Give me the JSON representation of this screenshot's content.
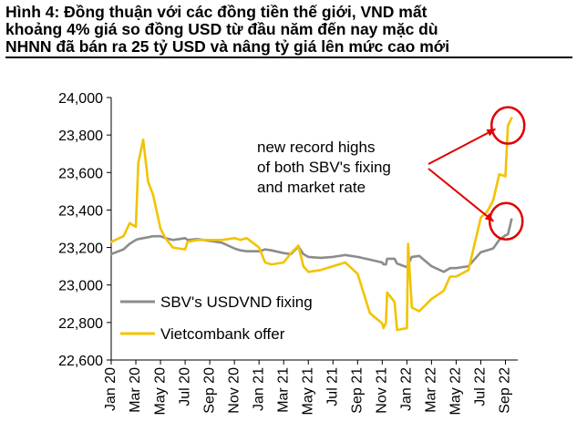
{
  "caption": {
    "lines": [
      "Hình 4: Đồng thuận với các đồng tiền thế giới, VND mất",
      "khoảng 4% giá so đồng USD từ đầu năm đến nay mặc dù",
      "NHNN đã bán ra 25 tỷ USD và nâng tỷ giá lên mức cao mới"
    ]
  },
  "chart_data": {
    "type": "line",
    "title": "Hình 4: Đồng thuận với các đồng tiền thế giới, VND mất khoảng 4% giá so đồng USD từ đầu năm đến nay mặc dù NHNN đã bán ra 25 tỷ USD và nâng tỷ giá lên mức cao mới",
    "xlabel": "",
    "ylabel": "",
    "ylim": [
      22600,
      24000
    ],
    "yticks": [
      "22,600",
      "22,800",
      "23,000",
      "23,200",
      "23,400",
      "23,600",
      "23,800",
      "24,000"
    ],
    "ytick_values": [
      22600,
      22800,
      23000,
      23200,
      23400,
      23600,
      23800,
      24000
    ],
    "xticks": [
      "Jan 20",
      "Mar 20",
      "May 20",
      "Jul 20",
      "Sep 20",
      "Nov 20",
      "Jan 21",
      "Mar 21",
      "May 21",
      "Jul 21",
      "Sep 21",
      "Nov 21",
      "Jan 22",
      "Mar 22",
      "May 22",
      "Jul 22",
      "Sep 22"
    ],
    "grid": false,
    "legend": "bottom-left",
    "x": [
      0.0,
      1.0,
      1.5,
      2.0,
      2.2,
      2.6,
      3.0,
      3.4,
      4.0,
      4.4,
      5.0,
      6.0,
      6.2,
      7.0,
      8.0,
      9.0,
      9.5,
      10.0,
      10.5,
      11.0,
      12.0,
      12.5,
      13.0,
      14.0,
      14.6,
      15.2,
      15.6,
      16.0,
      17.0,
      18.0,
      19.0,
      20.0,
      21.0,
      22.0,
      22.1,
      22.3,
      22.4,
      23.0,
      23.2,
      24.0,
      24.1,
      24.4,
      25.0,
      26.0,
      27.0,
      27.5,
      28.0,
      29.0,
      30.0,
      30.5,
      31.0,
      31.5,
      32.0,
      32.2,
      32.5
    ],
    "series": [
      {
        "name": "SBV's USDVND fixing",
        "color": "#8c8c8c",
        "values": [
          23165,
          23190,
          23220,
          23240,
          23245,
          23250,
          23255,
          23260,
          23260,
          23250,
          23240,
          23250,
          23240,
          23245,
          23235,
          23225,
          23210,
          23195,
          23185,
          23180,
          23180,
          23190,
          23185,
          23170,
          23165,
          23205,
          23165,
          23150,
          23145,
          23150,
          23160,
          23150,
          23135,
          23120,
          23110,
          23110,
          23140,
          23140,
          23115,
          23095,
          23110,
          23150,
          23155,
          23100,
          23070,
          23090,
          23090,
          23100,
          23175,
          23185,
          23195,
          23240,
          23265,
          23270,
          23350
        ]
      },
      {
        "name": "Vietcombank offer",
        "color": "#f2c300",
        "values": [
          23230,
          23260,
          23330,
          23310,
          23650,
          23775,
          23550,
          23480,
          23300,
          23250,
          23200,
          23190,
          23230,
          23240,
          23240,
          23240,
          23245,
          23250,
          23240,
          23250,
          23200,
          23120,
          23110,
          23120,
          23170,
          23210,
          23100,
          23070,
          23080,
          23100,
          23120,
          23060,
          22850,
          22795,
          22770,
          22800,
          22960,
          22910,
          22760,
          22770,
          23220,
          22880,
          22860,
          22925,
          22970,
          23045,
          23045,
          23080,
          23360,
          23390,
          23450,
          23590,
          23580,
          23850,
          23890
        ]
      }
    ],
    "annotations": [
      {
        "text": "new record highs of both SBV's fixing and market rate",
        "lines": [
          "new record highs",
          "of both SBV's fixing",
          "and market rate"
        ]
      }
    ]
  }
}
